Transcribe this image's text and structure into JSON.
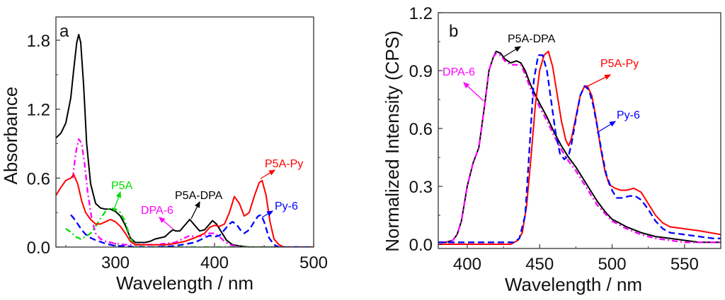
{
  "chart_data": [
    {
      "id": "a",
      "type": "line",
      "panel_label": "a",
      "xlabel": "Wavelength / nm",
      "ylabel": "Absorbance",
      "xlim": [
        240,
        500
      ],
      "ylim": [
        0,
        2.0
      ],
      "xticks": [
        300,
        400,
        500
      ],
      "yticks": [
        0.0,
        0.6,
        1.2,
        1.8
      ],
      "ytick_labels": [
        "0.0",
        "0.6",
        "1.2",
        "1.8"
      ],
      "xminor": [
        250,
        350,
        450
      ],
      "yminor": [
        0.3,
        0.9,
        1.5
      ],
      "grid": false,
      "series": [
        {
          "name": "P5A-DPA",
          "color": "#000000",
          "dash": "solid",
          "x": [
            240,
            245,
            250,
            255,
            258,
            261,
            263,
            265,
            268,
            271,
            275,
            280,
            285,
            290,
            295,
            300,
            305,
            310,
            315,
            320,
            325,
            330,
            335,
            340,
            345,
            350,
            355,
            358,
            361,
            365,
            370,
            375,
            380,
            385,
            390,
            395,
            398,
            402,
            407,
            412,
            418,
            425,
            435,
            450,
            470,
            500
          ],
          "y": [
            0.95,
            0.99,
            1.08,
            1.3,
            1.55,
            1.78,
            1.85,
            1.78,
            1.4,
            0.9,
            0.55,
            0.38,
            0.34,
            0.33,
            0.33,
            0.31,
            0.27,
            0.19,
            0.08,
            0.04,
            0.04,
            0.04,
            0.05,
            0.07,
            0.08,
            0.09,
            0.13,
            0.15,
            0.14,
            0.14,
            0.19,
            0.24,
            0.19,
            0.14,
            0.15,
            0.2,
            0.23,
            0.2,
            0.13,
            0.06,
            0.02,
            0.01,
            0.0,
            0.0,
            0.0,
            0.0
          ]
        },
        {
          "name": "DPA-6",
          "color": "#ff00ff",
          "dash": "dashdot",
          "x": [
            257,
            260,
            263,
            266,
            269,
            272,
            276,
            280,
            285,
            290,
            300,
            310,
            320,
            340,
            360,
            370,
            375,
            380,
            390,
            395,
            400,
            405,
            410,
            415,
            420,
            430,
            500
          ],
          "y": [
            0.6,
            0.82,
            0.94,
            0.9,
            0.72,
            0.48,
            0.25,
            0.12,
            0.07,
            0.05,
            0.03,
            0.02,
            0.02,
            0.02,
            0.04,
            0.08,
            0.1,
            0.09,
            0.1,
            0.12,
            0.12,
            0.09,
            0.05,
            0.02,
            0.01,
            0.0,
            0.0
          ]
        },
        {
          "name": "P5A",
          "color": "#00dd00",
          "dash": "dashdot",
          "x": [
            250,
            255,
            260,
            265,
            270,
            275,
            280,
            285,
            290,
            295,
            300,
            305,
            310,
            315,
            320,
            330,
            350,
            400,
            450,
            500
          ],
          "y": [
            0.16,
            0.13,
            0.09,
            0.07,
            0.09,
            0.12,
            0.18,
            0.25,
            0.31,
            0.34,
            0.33,
            0.3,
            0.22,
            0.08,
            0.01,
            0.0,
            0.0,
            0.0,
            0.0,
            0.0
          ]
        },
        {
          "name": "P5A-Py",
          "color": "#ff0000",
          "dash": "solid",
          "x": [
            240,
            245,
            250,
            255,
            258,
            262,
            266,
            270,
            275,
            280,
            285,
            290,
            295,
            300,
            305,
            310,
            315,
            320,
            330,
            340,
            350,
            360,
            370,
            380,
            390,
            395,
            400,
            405,
            410,
            415,
            420,
            425,
            430,
            435,
            440,
            445,
            448,
            452,
            456,
            460,
            465,
            470,
            480,
            500
          ],
          "y": [
            0.45,
            0.52,
            0.58,
            0.6,
            0.63,
            0.55,
            0.4,
            0.3,
            0.24,
            0.2,
            0.2,
            0.22,
            0.24,
            0.22,
            0.18,
            0.12,
            0.05,
            0.02,
            0.02,
            0.02,
            0.02,
            0.03,
            0.05,
            0.08,
            0.12,
            0.17,
            0.19,
            0.18,
            0.2,
            0.3,
            0.44,
            0.38,
            0.27,
            0.3,
            0.44,
            0.56,
            0.58,
            0.45,
            0.22,
            0.07,
            0.02,
            0.0,
            0.0,
            0.0
          ]
        },
        {
          "name": "Py-6",
          "color": "#0000ff",
          "dash": "dash",
          "x": [
            255,
            258,
            262,
            266,
            270,
            275,
            280,
            290,
            300,
            310,
            320,
            340,
            360,
            380,
            390,
            395,
            400,
            405,
            410,
            415,
            418,
            422,
            426,
            430,
            435,
            440,
            444,
            447,
            450,
            455,
            460,
            465,
            500
          ],
          "y": [
            0.28,
            0.25,
            0.2,
            0.15,
            0.11,
            0.08,
            0.06,
            0.03,
            0.01,
            0.01,
            0.0,
            0.0,
            0.01,
            0.04,
            0.08,
            0.1,
            0.09,
            0.1,
            0.15,
            0.2,
            0.22,
            0.2,
            0.15,
            0.12,
            0.15,
            0.22,
            0.27,
            0.28,
            0.22,
            0.08,
            0.02,
            0.0,
            0.0
          ]
        }
      ],
      "annotations": [
        {
          "text": "P5A",
          "color": "#00dd00",
          "series": "P5A"
        },
        {
          "text": "DPA-6",
          "color": "#ff00ff",
          "series": "DPA-6"
        },
        {
          "text": "P5A-DPA",
          "color": "#000000",
          "series": "P5A-DPA"
        },
        {
          "text": "P5A-Py",
          "color": "#ff0000",
          "series": "P5A-Py"
        },
        {
          "text": "Py-6",
          "color": "#0000ff",
          "series": "Py-6"
        }
      ]
    },
    {
      "id": "b",
      "type": "line",
      "panel_label": "b",
      "xlabel": "Wavelength / nm",
      "ylabel": "Normalized Intensity (CPS)",
      "xlim": [
        380,
        575
      ],
      "ylim": [
        0,
        1.2
      ],
      "xticks": [
        400,
        450,
        500,
        550
      ],
      "yticks": [
        0.0,
        0.3,
        0.6,
        0.9,
        1.2
      ],
      "ytick_labels": [
        "0.0",
        "0.3",
        "0.6",
        "0.9",
        "1.2"
      ],
      "xminor": [
        425,
        475,
        525
      ],
      "yminor": [
        0.15,
        0.45,
        0.75,
        1.05
      ],
      "grid": false,
      "series": [
        {
          "name": "P5A-DPA",
          "color": "#000000",
          "dash": "solid",
          "x": [
            380,
            385,
            390,
            393,
            396,
            400,
            404,
            408,
            412,
            415,
            418,
            420,
            423,
            426,
            430,
            434,
            437,
            440,
            443,
            446,
            450,
            455,
            460,
            465,
            470,
            475,
            480,
            485,
            490,
            495,
            500,
            510,
            520,
            530,
            540,
            550,
            560,
            570,
            575
          ],
          "y": [
            0.01,
            0.01,
            0.02,
            0.05,
            0.12,
            0.3,
            0.42,
            0.5,
            0.72,
            0.9,
            0.97,
            1.0,
            0.99,
            0.96,
            0.94,
            0.95,
            0.94,
            0.9,
            0.84,
            0.79,
            0.73,
            0.66,
            0.58,
            0.51,
            0.45,
            0.4,
            0.34,
            0.28,
            0.22,
            0.17,
            0.13,
            0.09,
            0.06,
            0.04,
            0.03,
            0.02,
            0.01,
            0.01,
            0.01
          ]
        },
        {
          "name": "DPA-6",
          "color": "#ff00ff",
          "dash": "dashdot",
          "x": [
            380,
            385,
            390,
            393,
            396,
            400,
            404,
            408,
            412,
            415,
            418,
            420,
            423,
            426,
            430,
            434,
            437,
            440,
            443,
            446,
            450,
            455,
            460,
            465,
            470,
            475,
            480,
            485,
            490,
            495,
            500,
            510,
            520,
            530,
            540,
            550,
            560,
            570,
            575
          ],
          "y": [
            0.01,
            0.01,
            0.02,
            0.05,
            0.12,
            0.3,
            0.42,
            0.5,
            0.72,
            0.9,
            0.97,
            0.99,
            0.98,
            0.95,
            0.93,
            0.93,
            0.93,
            0.88,
            0.82,
            0.77,
            0.71,
            0.64,
            0.56,
            0.49,
            0.43,
            0.38,
            0.32,
            0.26,
            0.2,
            0.16,
            0.12,
            0.08,
            0.05,
            0.03,
            0.02,
            0.01,
            0.01,
            0.01,
            0.01
          ]
        },
        {
          "name": "P5A-Py",
          "color": "#ff0000",
          "dash": "solid",
          "x": [
            380,
            420,
            430,
            435,
            438,
            441,
            444,
            447,
            450,
            453,
            456,
            459,
            462,
            465,
            468,
            470,
            472,
            475,
            478,
            481,
            483,
            486,
            489,
            492,
            495,
            498,
            502,
            506,
            510,
            515,
            520,
            525,
            530,
            535,
            540,
            550,
            560,
            575
          ],
          "y": [
            0.0,
            0.0,
            0.0,
            0.02,
            0.06,
            0.2,
            0.45,
            0.72,
            0.9,
            0.98,
            1.0,
            0.92,
            0.78,
            0.64,
            0.54,
            0.51,
            0.55,
            0.66,
            0.77,
            0.82,
            0.82,
            0.77,
            0.65,
            0.5,
            0.38,
            0.31,
            0.29,
            0.28,
            0.28,
            0.29,
            0.27,
            0.21,
            0.15,
            0.11,
            0.09,
            0.08,
            0.07,
            0.05
          ]
        },
        {
          "name": "Py-6",
          "color": "#0000ff",
          "dash": "dash",
          "x": [
            380,
            425,
            432,
            436,
            440,
            443,
            446,
            449,
            452,
            455,
            458,
            461,
            464,
            467,
            470,
            472,
            475,
            478,
            481,
            484,
            487,
            490,
            493,
            496,
            500,
            503,
            507,
            512,
            516,
            520,
            525,
            530,
            535,
            540,
            550,
            560,
            570,
            575
          ],
          "y": [
            0.01,
            0.01,
            0.01,
            0.03,
            0.15,
            0.5,
            0.85,
            0.98,
            0.98,
            0.9,
            0.74,
            0.58,
            0.47,
            0.44,
            0.46,
            0.52,
            0.65,
            0.77,
            0.82,
            0.8,
            0.72,
            0.6,
            0.47,
            0.36,
            0.28,
            0.24,
            0.24,
            0.25,
            0.25,
            0.23,
            0.18,
            0.12,
            0.08,
            0.06,
            0.05,
            0.04,
            0.03,
            0.03
          ]
        }
      ],
      "annotations": [
        {
          "text": "P5A-DPA",
          "color": "#000000",
          "series": "P5A-DPA"
        },
        {
          "text": "DPA-6",
          "color": "#ff00ff",
          "series": "DPA-6"
        },
        {
          "text": "P5A-Py",
          "color": "#ff0000",
          "series": "P5A-Py"
        },
        {
          "text": "Py-6",
          "color": "#0000ff",
          "series": "Py-6"
        }
      ]
    }
  ]
}
